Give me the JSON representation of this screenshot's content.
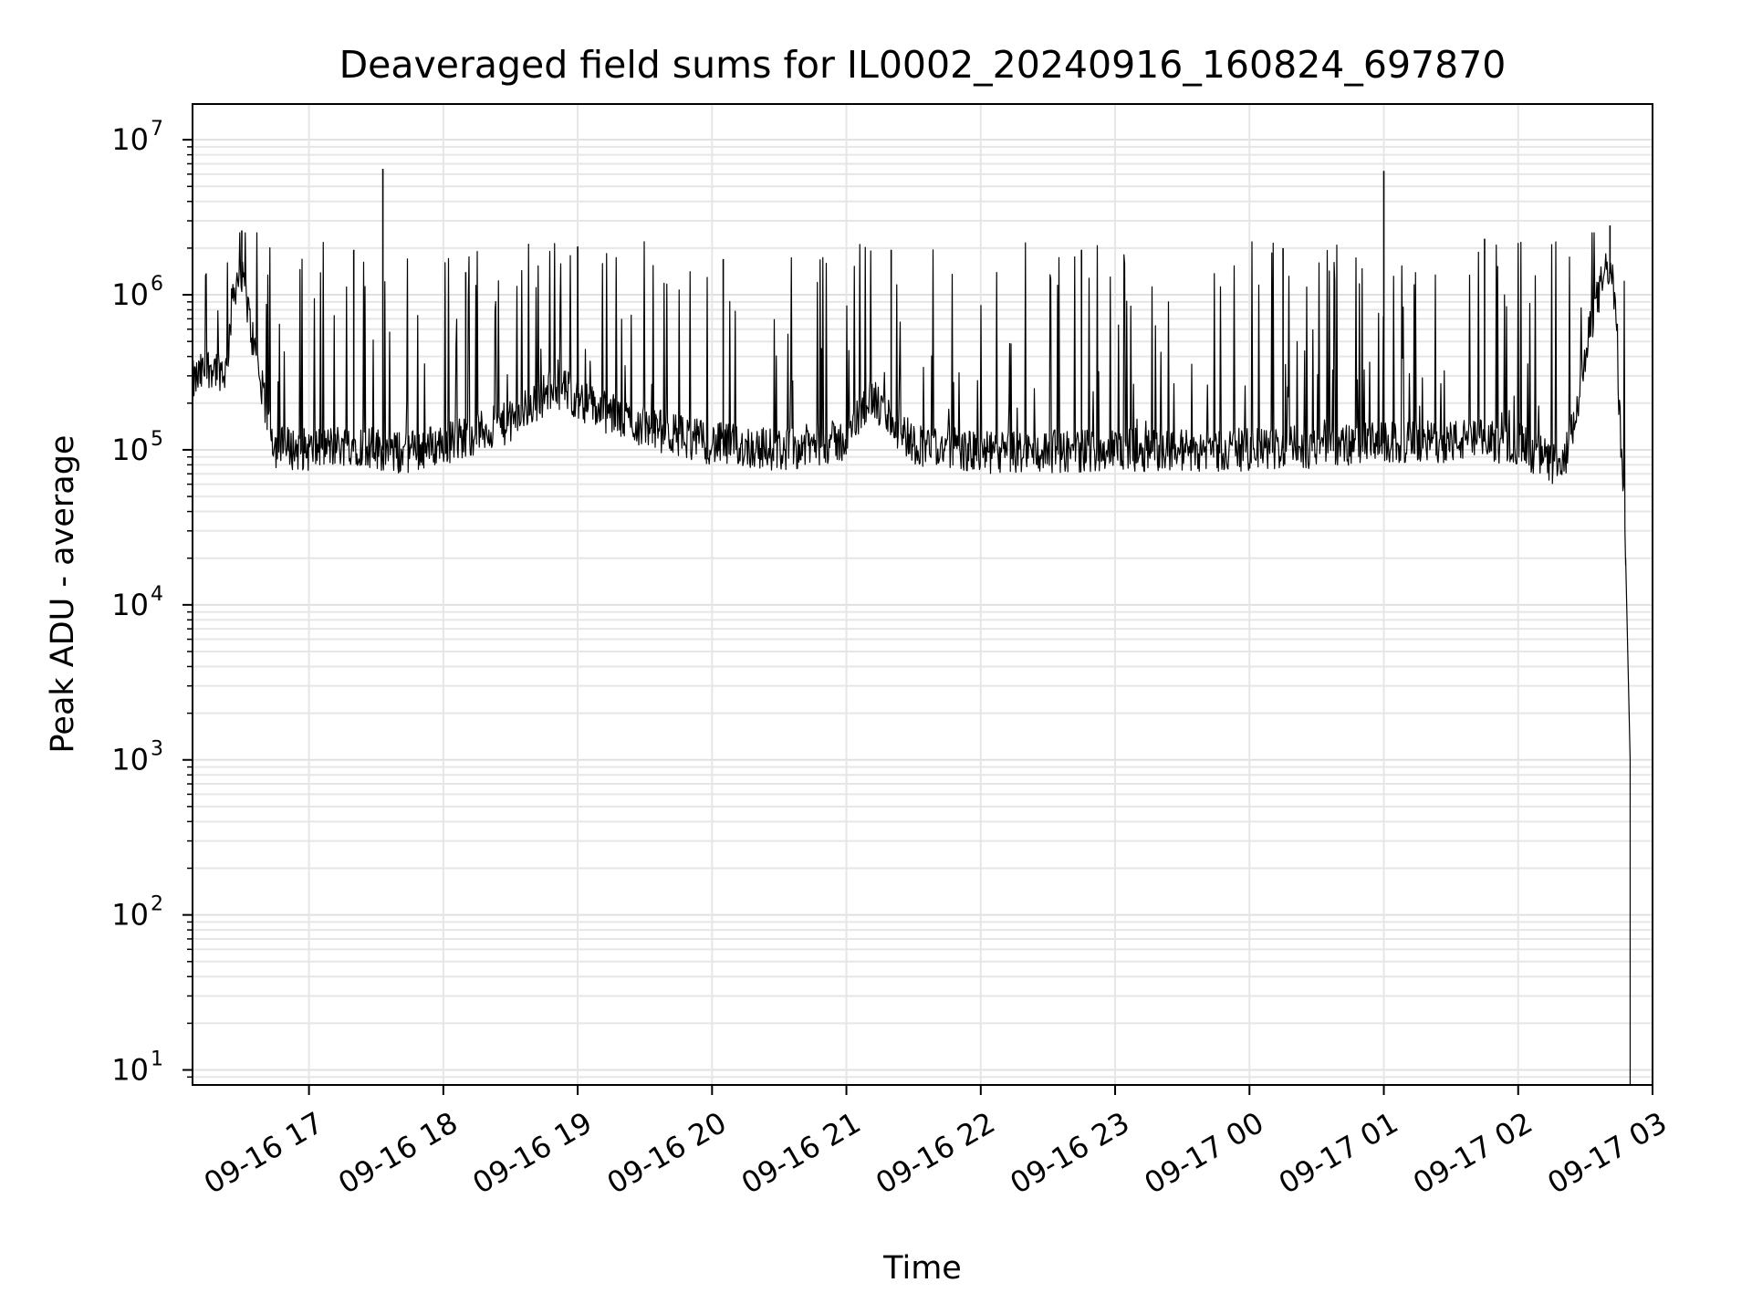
{
  "chart_data": {
    "type": "line",
    "title": "Deaveraged field sums for IL0002_20240916_160824_697870",
    "xlabel": "Time",
    "ylabel": "Peak ADU - average",
    "y_scale": "log",
    "ylim": [
      8,
      17000000
    ],
    "xlim": [
      "2024-09-16 16:08",
      "2024-09-17 03:00"
    ],
    "grid": true,
    "x_ticks": [
      {
        "t": "2024-09-16 17:00",
        "label": "09-16 17"
      },
      {
        "t": "2024-09-16 18:00",
        "label": "09-16 18"
      },
      {
        "t": "2024-09-16 19:00",
        "label": "09-16 19"
      },
      {
        "t": "2024-09-16 20:00",
        "label": "09-16 20"
      },
      {
        "t": "2024-09-16 21:00",
        "label": "09-16 21"
      },
      {
        "t": "2024-09-16 22:00",
        "label": "09-16 22"
      },
      {
        "t": "2024-09-16 23:00",
        "label": "09-16 23"
      },
      {
        "t": "2024-09-17 00:00",
        "label": "09-17 00"
      },
      {
        "t": "2024-09-17 01:00",
        "label": "09-17 01"
      },
      {
        "t": "2024-09-17 02:00",
        "label": "09-17 02"
      },
      {
        "t": "2024-09-17 03:00",
        "label": "09-17 03"
      }
    ],
    "y_ticks": [
      {
        "value": 10,
        "base": "10",
        "exp": "1"
      },
      {
        "value": 100,
        "base": "10",
        "exp": "2"
      },
      {
        "value": 1000,
        "base": "10",
        "exp": "3"
      },
      {
        "value": 10000,
        "base": "10",
        "exp": "4"
      },
      {
        "value": 100000,
        "base": "10",
        "exp": "5"
      },
      {
        "value": 1000000,
        "base": "10",
        "exp": "6"
      },
      {
        "value": 10000000,
        "base": "10",
        "exp": "7"
      }
    ],
    "series": [
      {
        "color": "#000000",
        "points": [
          [
            "2024-09-16 16:08",
            270000
          ],
          [
            "2024-09-16 16:16",
            350000
          ],
          [
            "2024-09-16 16:23",
            320000
          ],
          [
            "2024-09-16 16:26",
            1000000
          ],
          [
            "2024-09-16 16:28",
            1300000
          ],
          [
            "2024-09-16 16:31",
            1150000
          ],
          [
            "2024-09-16 16:35",
            500000
          ],
          [
            "2024-09-16 16:40",
            200000
          ],
          [
            "2024-09-16 16:45",
            105000
          ],
          [
            "2024-09-16 17:00",
            100000
          ],
          [
            "2024-09-16 17:20",
            110000
          ],
          [
            "2024-09-16 17:40",
            95000
          ],
          [
            "2024-09-16 18:00",
            110000
          ],
          [
            "2024-09-16 18:30",
            150000
          ],
          [
            "2024-09-16 18:50",
            260000
          ],
          [
            "2024-09-16 19:10",
            180000
          ],
          [
            "2024-09-16 19:30",
            140000
          ],
          [
            "2024-09-16 20:00",
            110000
          ],
          [
            "2024-09-16 20:30",
            100000
          ],
          [
            "2024-09-16 21:00",
            115000
          ],
          [
            "2024-09-16 21:10",
            220000
          ],
          [
            "2024-09-16 21:30",
            110000
          ],
          [
            "2024-09-16 22:00",
            95000
          ],
          [
            "2024-09-16 23:00",
            100000
          ],
          [
            "2024-09-17 00:00",
            100000
          ],
          [
            "2024-09-17 01:00",
            110000
          ],
          [
            "2024-09-17 01:40",
            115000
          ],
          [
            "2024-09-17 02:00",
            110000
          ],
          [
            "2024-09-17 02:20",
            75000
          ],
          [
            "2024-09-17 02:25",
            150000
          ],
          [
            "2024-09-17 02:33",
            700000
          ],
          [
            "2024-09-17 02:40",
            1600000
          ],
          [
            "2024-09-17 02:43",
            1000000
          ],
          [
            "2024-09-17 02:46",
            100000
          ],
          [
            "2024-09-17 02:48",
            20000
          ],
          [
            "2024-09-17 02:50",
            1000
          ],
          [
            "2024-09-17 02:50",
            8
          ]
        ],
        "spikes": [
          [
            "2024-09-16 16:30",
            2600000
          ],
          [
            "2024-09-16 17:33",
            6500000
          ],
          [
            "2024-09-17 01:00",
            6300000
          ],
          [
            "2024-09-17 02:41",
            2800000
          ],
          [
            "2024-09-16 17:20",
            1950000
          ],
          [
            "2024-09-16 18:10",
            1400000
          ],
          [
            "2024-09-16 19:00",
            2050000
          ],
          [
            "2024-09-16 20:05",
            1700000
          ],
          [
            "2024-09-16 21:20",
            1950000
          ],
          [
            "2024-09-16 22:45",
            1950000
          ],
          [
            "2024-09-17 00:15",
            2000000
          ],
          [
            "2024-09-17 01:45",
            2300000
          ]
        ]
      }
    ]
  }
}
